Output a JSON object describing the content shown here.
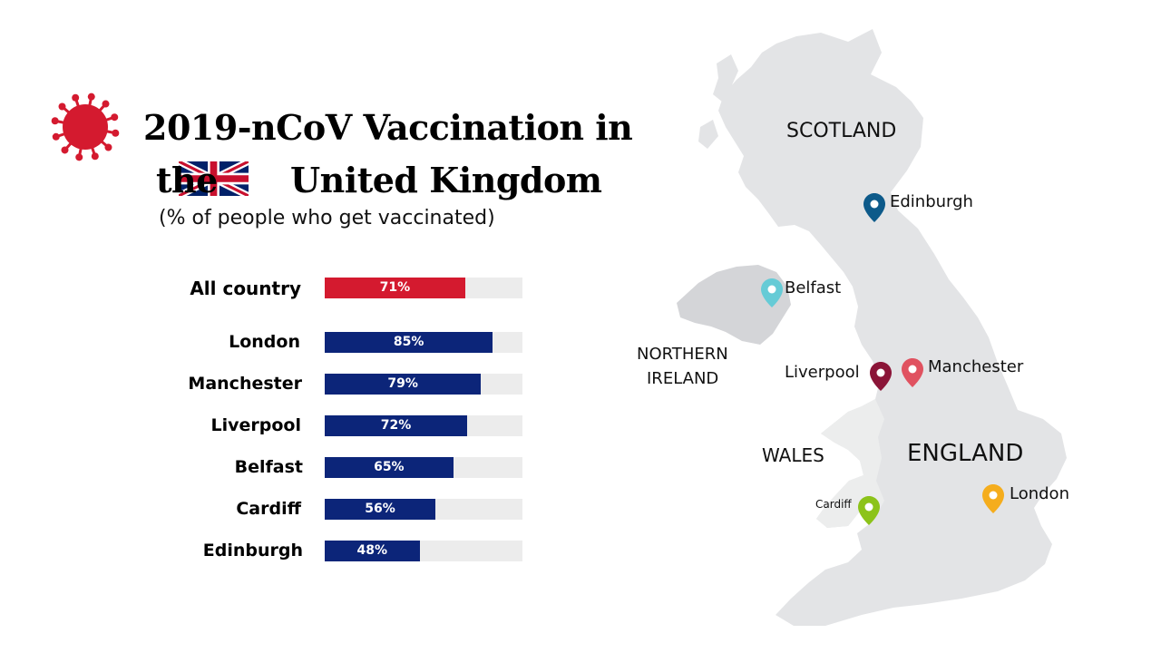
{
  "title": {
    "line1": "2019-nCoV Vaccination in",
    "line2_prefix": "the",
    "line2_main": "United Kingdom",
    "subtitle": "(% of people who get vaccinated)"
  },
  "colors": {
    "total": "#d41a2f",
    "city": "#0c2579",
    "track": "#ececec",
    "map": "#e3e4e6",
    "virus": "#d41a2f"
  },
  "chart_data": {
    "type": "bar",
    "orientation": "horizontal",
    "categories": [
      "All country",
      "London",
      "Manchester",
      "Liverpool",
      "Belfast",
      "Cardiff",
      "Edinburgh"
    ],
    "values": [
      71,
      85,
      79,
      72,
      65,
      56,
      48
    ],
    "labels": [
      "71%",
      "85%",
      "79%",
      "72%",
      "65%",
      "56%",
      "48%"
    ],
    "xlim": [
      0,
      100
    ]
  },
  "map": {
    "regions": {
      "scotland": "SCOTLAND",
      "northern_ireland_1": "NORTHERN",
      "northern_ireland_2": "IRELAND",
      "wales": "WALES",
      "england": "ENGLAND"
    },
    "cities": [
      {
        "name": "Edinburgh",
        "color": "#0d5a8a"
      },
      {
        "name": "Belfast",
        "color": "#66cbd6"
      },
      {
        "name": "Liverpool",
        "color": "#8b1538"
      },
      {
        "name": "Manchester",
        "color": "#e05260"
      },
      {
        "name": "Cardiff",
        "color": "#8cc31a"
      },
      {
        "name": "London",
        "color": "#f5ad1d"
      }
    ]
  }
}
